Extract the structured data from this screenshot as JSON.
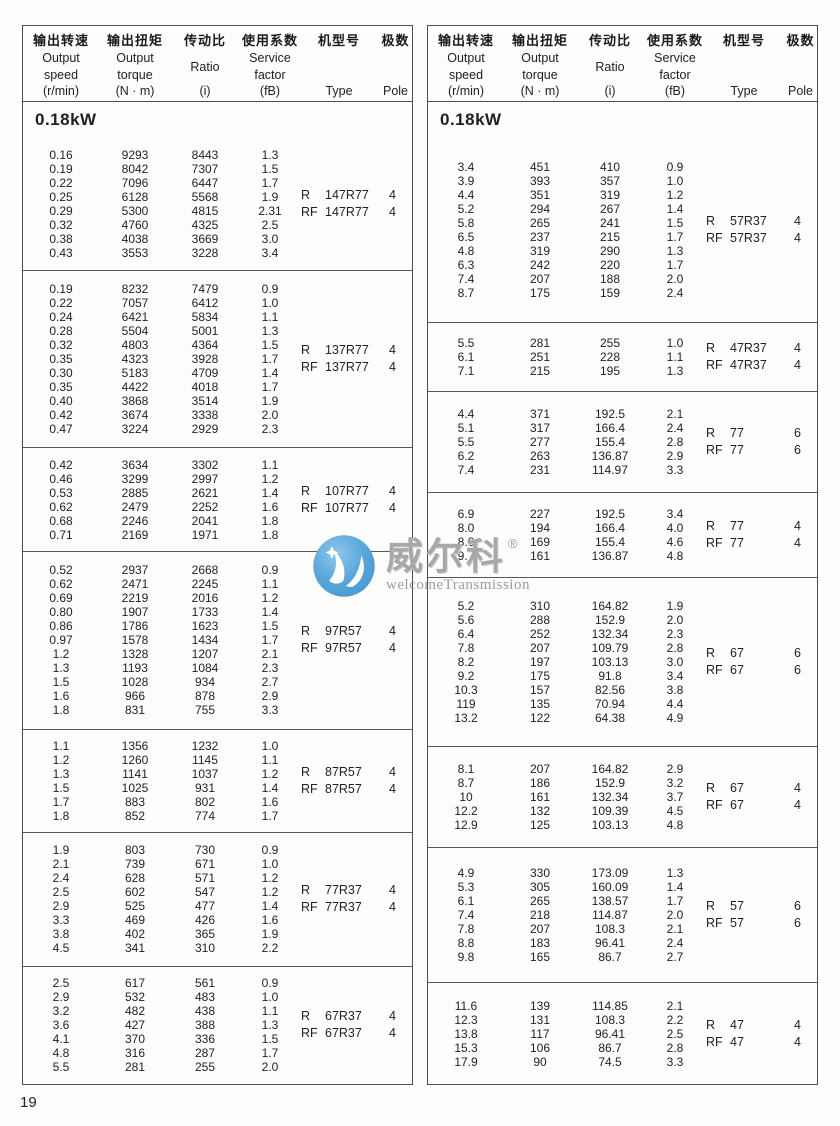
{
  "page": {
    "number": "19"
  },
  "colors": {
    "border": "#4c4c4c",
    "text": "#1f1f1f",
    "watermark_blue": "#58a6d8",
    "watermark_gray": "#a8a8a8"
  },
  "watermark": {
    "logo_icon": "blue-circle-swoosh-logo",
    "brand": "威尔科",
    "reg": "®",
    "tagline": "welcomeTransmission"
  },
  "header": {
    "columns": [
      {
        "zh": "输出转速",
        "lines": [
          "Output",
          "speed"
        ],
        "unit": "(r/min)"
      },
      {
        "zh": "输出扭矩",
        "lines": [
          "Output",
          "torque"
        ],
        "unit": "(N · m)"
      },
      {
        "zh": "传动比",
        "lines": [
          "Ratio"
        ],
        "unit": "(i)"
      },
      {
        "zh": "使用系数",
        "lines": [
          "Service",
          "factor"
        ],
        "unit": "(fB)"
      },
      {
        "zh": "机型号",
        "lines": [],
        "unit": "Type"
      },
      {
        "zh": "极数",
        "lines": [],
        "unit": "Pole"
      }
    ]
  },
  "tables": [
    {
      "power_label": "0.18kW",
      "blocks": [
        {
          "rows": [
            [
              "0.16",
              "9293",
              "8443",
              "1.3"
            ],
            [
              "0.19",
              "8042",
              "7307",
              "1.5"
            ],
            [
              "0.22",
              "7096",
              "6447",
              "1.7"
            ],
            [
              "0.25",
              "6128",
              "5568",
              "1.9"
            ],
            [
              "0.29",
              "5300",
              "4815",
              "2.31"
            ],
            [
              "0.32",
              "4760",
              "4325",
              "2.5"
            ],
            [
              "0.38",
              "4038",
              "3669",
              "3.0"
            ],
            [
              "0.43",
              "3553",
              "3228",
              "3.4"
            ]
          ],
          "types": [
            {
              "prefix": "R",
              "model": "147R77",
              "pole": "4"
            },
            {
              "prefix": "RF",
              "model": "147R77",
              "pole": "4"
            }
          ]
        },
        {
          "rows": [
            [
              "0.19",
              "8232",
              "7479",
              "0.9"
            ],
            [
              "0.22",
              "7057",
              "6412",
              "1.0"
            ],
            [
              "0.24",
              "6421",
              "5834",
              "1.1"
            ],
            [
              "0.28",
              "5504",
              "5001",
              "1.3"
            ],
            [
              "0.32",
              "4803",
              "4364",
              "1.5"
            ],
            [
              "0.35",
              "4323",
              "3928",
              "1.7"
            ],
            [
              "0.30",
              "5183",
              "4709",
              "1.4"
            ],
            [
              "0.35",
              "4422",
              "4018",
              "1.7"
            ],
            [
              "0.40",
              "3868",
              "3514",
              "1.9"
            ],
            [
              "0.42",
              "3674",
              "3338",
              "2.0"
            ],
            [
              "0.47",
              "3224",
              "2929",
              "2.3"
            ]
          ],
          "types": [
            {
              "prefix": "R",
              "model": "137R77",
              "pole": "4"
            },
            {
              "prefix": "RF",
              "model": "137R77",
              "pole": "4"
            }
          ]
        },
        {
          "rows": [
            [
              "0.42",
              "3634",
              "3302",
              "1.1"
            ],
            [
              "0.46",
              "3299",
              "2997",
              "1.2"
            ],
            [
              "0.53",
              "2885",
              "2621",
              "1.4"
            ],
            [
              "0.62",
              "2479",
              "2252",
              "1.6"
            ],
            [
              "0.68",
              "2246",
              "2041",
              "1.8"
            ],
            [
              "0.71",
              "2169",
              "1971",
              "1.8"
            ]
          ],
          "types": [
            {
              "prefix": "R",
              "model": "107R77",
              "pole": "4"
            },
            {
              "prefix": "RF",
              "model": "107R77",
              "pole": "4"
            }
          ]
        },
        {
          "rows": [
            [
              "0.52",
              "2937",
              "2668",
              "0.9"
            ],
            [
              "0.62",
              "2471",
              "2245",
              "1.1"
            ],
            [
              "0.69",
              "2219",
              "2016",
              "1.2"
            ],
            [
              "0.80",
              "1907",
              "1733",
              "1.4"
            ],
            [
              "0.86",
              "1786",
              "1623",
              "1.5"
            ],
            [
              "0.97",
              "1578",
              "1434",
              "1.7"
            ],
            [
              "1.2",
              "1328",
              "1207",
              "2.1"
            ],
            [
              "1.3",
              "1193",
              "1084",
              "2.3"
            ],
            [
              "1.5",
              "1028",
              "934",
              "2.7"
            ],
            [
              "1.6",
              "966",
              "878",
              "2.9"
            ],
            [
              "1.8",
              "831",
              "755",
              "3.3"
            ]
          ],
          "types": [
            {
              "prefix": "R",
              "model": "97R57",
              "pole": "4"
            },
            {
              "prefix": "RF",
              "model": "97R57",
              "pole": "4"
            }
          ]
        },
        {
          "rows": [
            [
              "1.1",
              "1356",
              "1232",
              "1.0"
            ],
            [
              "1.2",
              "1260",
              "1145",
              "1.1"
            ],
            [
              "1.3",
              "1141",
              "1037",
              "1.2"
            ],
            [
              "1.5",
              "1025",
              "931",
              "1.4"
            ],
            [
              "1.7",
              "883",
              "802",
              "1.6"
            ],
            [
              "1.8",
              "852",
              "774",
              "1.7"
            ]
          ],
          "types": [
            {
              "prefix": "R",
              "model": "87R57",
              "pole": "4"
            },
            {
              "prefix": "RF",
              "model": "87R57",
              "pole": "4"
            }
          ]
        },
        {
          "rows": [
            [
              "1.9",
              "803",
              "730",
              "0.9"
            ],
            [
              "2.1",
              "739",
              "671",
              "1.0"
            ],
            [
              "2.4",
              "628",
              "571",
              "1.2"
            ],
            [
              "2.5",
              "602",
              "547",
              "1.2"
            ],
            [
              "2.9",
              "525",
              "477",
              "1.4"
            ],
            [
              "3.3",
              "469",
              "426",
              "1.6"
            ],
            [
              "3.8",
              "402",
              "365",
              "1.9"
            ],
            [
              "4.5",
              "341",
              "310",
              "2.2"
            ]
          ],
          "types": [
            {
              "prefix": "R",
              "model": "77R37",
              "pole": "4"
            },
            {
              "prefix": "RF",
              "model": "77R37",
              "pole": "4"
            }
          ]
        },
        {
          "rows": [
            [
              "2.5",
              "617",
              "561",
              "0.9"
            ],
            [
              "2.9",
              "532",
              "483",
              "1.0"
            ],
            [
              "3.2",
              "482",
              "438",
              "1.1"
            ],
            [
              "3.6",
              "427",
              "388",
              "1.3"
            ],
            [
              "4.1",
              "370",
              "336",
              "1.5"
            ],
            [
              "4.8",
              "316",
              "287",
              "1.7"
            ],
            [
              "5.5",
              "281",
              "255",
              "2.0"
            ]
          ],
          "types": [
            {
              "prefix": "R",
              "model": "67R37",
              "pole": "4"
            },
            {
              "prefix": "RF",
              "model": "67R37",
              "pole": "4"
            }
          ]
        }
      ]
    },
    {
      "power_label": "0.18kW",
      "blocks": [
        {
          "rows": [
            [
              "3.4",
              "451",
              "410",
              "0.9"
            ],
            [
              "3.9",
              "393",
              "357",
              "1.0"
            ],
            [
              "4.4",
              "351",
              "319",
              "1.2"
            ],
            [
              "5.2",
              "294",
              "267",
              "1.4"
            ],
            [
              "5.8",
              "265",
              "241",
              "1.5"
            ],
            [
              "6.5",
              "237",
              "215",
              "1.7"
            ],
            [
              "4.8",
              "319",
              "290",
              "1.3"
            ],
            [
              "6.3",
              "242",
              "220",
              "1.7"
            ],
            [
              "7.4",
              "207",
              "188",
              "2.0"
            ],
            [
              "8.7",
              "175",
              "159",
              "2.4"
            ]
          ],
          "types": [
            {
              "prefix": "R",
              "model": "57R37",
              "pole": "4"
            },
            {
              "prefix": "RF",
              "model": "57R37",
              "pole": "4"
            }
          ]
        },
        {
          "rows": [
            [
              "5.5",
              "281",
              "255",
              "1.0"
            ],
            [
              "6.1",
              "251",
              "228",
              "1.1"
            ],
            [
              "7.1",
              "215",
              "195",
              "1.3"
            ]
          ],
          "types": [
            {
              "prefix": "R",
              "model": "47R37",
              "pole": "4"
            },
            {
              "prefix": "RF",
              "model": "47R37",
              "pole": "4"
            }
          ]
        },
        {
          "rows": [
            [
              "4.4",
              "371",
              "192.5",
              "2.1"
            ],
            [
              "5.1",
              "317",
              "166.4",
              "2.4"
            ],
            [
              "5.5",
              "277",
              "155.4",
              "2.8"
            ],
            [
              "6.2",
              "263",
              "136.87",
              "2.9"
            ],
            [
              "7.4",
              "231",
              "114.97",
              "3.3"
            ]
          ],
          "types": [
            {
              "prefix": "R",
              "model": "77",
              "pole": "6"
            },
            {
              "prefix": "RF",
              "model": "77",
              "pole": "6"
            }
          ]
        },
        {
          "rows": [
            [
              "6.9",
              "227",
              "192.5",
              "3.4"
            ],
            [
              "8.0",
              "194",
              "166.4",
              "4.0"
            ],
            [
              "8.6",
              "169",
              "155.4",
              "4.6"
            ],
            [
              "9.7",
              "161",
              "136.87",
              "4.8"
            ]
          ],
          "types": [
            {
              "prefix": "R",
              "model": "77",
              "pole": "4"
            },
            {
              "prefix": "RF",
              "model": "77",
              "pole": "4"
            }
          ]
        },
        {
          "rows": [
            [
              "5.2",
              "310",
              "164.82",
              "1.9"
            ],
            [
              "5.6",
              "288",
              "152.9",
              "2.0"
            ],
            [
              "6.4",
              "252",
              "132.34",
              "2.3"
            ],
            [
              "7.8",
              "207",
              "109.79",
              "2.8"
            ],
            [
              "8.2",
              "197",
              "103.13",
              "3.0"
            ],
            [
              "9.2",
              "175",
              "91.8",
              "3.4"
            ],
            [
              "10.3",
              "157",
              "82.56",
              "3.8"
            ],
            [
              "119",
              "135",
              "70.94",
              "4.4"
            ],
            [
              "13.2",
              "122",
              "64.38",
              "4.9"
            ]
          ],
          "types": [
            {
              "prefix": "R",
              "model": "67",
              "pole": "6"
            },
            {
              "prefix": "RF",
              "model": "67",
              "pole": "6"
            }
          ]
        },
        {
          "rows": [
            [
              "8.1",
              "207",
              "164.82",
              "2.9"
            ],
            [
              "8.7",
              "186",
              "152.9",
              "3.2"
            ],
            [
              "10",
              "161",
              "132.34",
              "3.7"
            ],
            [
              "12.2",
              "132",
              "109.39",
              "4.5"
            ],
            [
              "12.9",
              "125",
              "103.13",
              "4.8"
            ]
          ],
          "types": [
            {
              "prefix": "R",
              "model": "67",
              "pole": "4"
            },
            {
              "prefix": "RF",
              "model": "67",
              "pole": "4"
            }
          ]
        },
        {
          "rows": [
            [
              "4.9",
              "330",
              "173.09",
              "1.3"
            ],
            [
              "5.3",
              "305",
              "160.09",
              "1.4"
            ],
            [
              "6.1",
              "265",
              "138.57",
              "1.7"
            ],
            [
              "7.4",
              "218",
              "114.87",
              "2.0"
            ],
            [
              "7.8",
              "207",
              "108.3",
              "2.1"
            ],
            [
              "8.8",
              "183",
              "96.41",
              "2.4"
            ],
            [
              "9.8",
              "165",
              "86.7",
              "2.7"
            ]
          ],
          "types": [
            {
              "prefix": "R",
              "model": "57",
              "pole": "6"
            },
            {
              "prefix": "RF",
              "model": "57",
              "pole": "6"
            }
          ]
        },
        {
          "rows": [
            [
              "11.6",
              "139",
              "114.85",
              "2.1"
            ],
            [
              "12.3",
              "131",
              "108.3",
              "2.2"
            ],
            [
              "13.8",
              "117",
              "96.41",
              "2.5"
            ],
            [
              "15.3",
              "106",
              "86.7",
              "2.8"
            ],
            [
              "17.9",
              "90",
              "74.5",
              "3.3"
            ]
          ],
          "types": [
            {
              "prefix": "R",
              "model": "47",
              "pole": "4"
            },
            {
              "prefix": "RF",
              "model": "47",
              "pole": "4"
            }
          ]
        }
      ]
    }
  ]
}
